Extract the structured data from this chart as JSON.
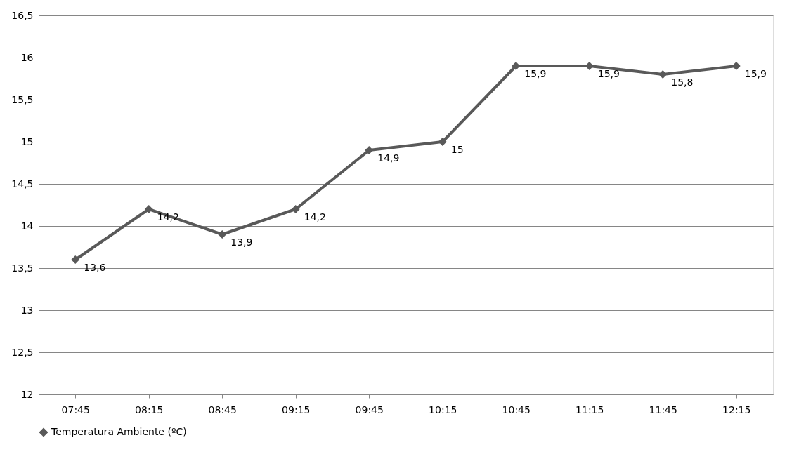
{
  "chart_data": {
    "type": "line",
    "categories": [
      "07:45",
      "08:15",
      "08:45",
      "09:15",
      "09:45",
      "10:15",
      "10:45",
      "11:15",
      "11:45",
      "12:15"
    ],
    "series": [
      {
        "name": "Temperatura Ambiente (ºC)",
        "color": "#595959",
        "values": [
          13.6,
          14.2,
          13.9,
          14.2,
          14.9,
          15.0,
          15.9,
          15.9,
          15.8,
          15.9
        ],
        "value_labels": [
          "13,6",
          "14,2",
          "13,9",
          "14,2",
          "14,9",
          "15",
          "15,9",
          "15,9",
          "15,8",
          "15,9"
        ]
      }
    ],
    "ylim": [
      12,
      16.5
    ],
    "yticks": [
      12,
      {
        "value": 12.5,
        "label": "12,5"
      },
      13,
      {
        "value": 13.5,
        "label": "13,5"
      },
      14,
      {
        "value": 14.5,
        "label": "14,5"
      },
      15,
      {
        "value": 15.5,
        "label": "15,5"
      },
      16,
      {
        "value": 16.5,
        "label": "16,5"
      }
    ],
    "grid": "y",
    "legend": "bottom",
    "marker": "diamond",
    "line_style": "solid"
  }
}
